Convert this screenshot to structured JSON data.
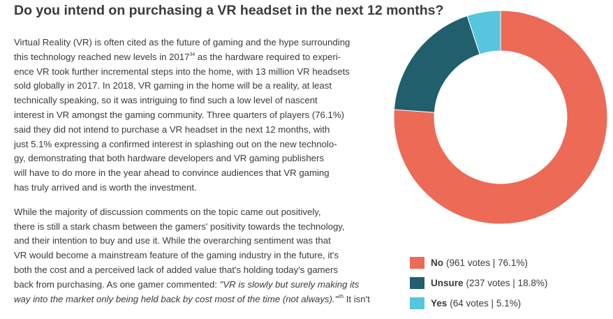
{
  "title": "Do you intend on purchasing a VR headset in the next 12 months?",
  "paragraph1": {
    "l1": "Virtual Reality (VR) is often cited as the future of gaming and the hype surrounding",
    "l2a": "this technology reached new levels in 2017",
    "l2sup": "34",
    "l2b": " as the hardware required to experi-",
    "l3": "ence VR took further incremental steps into the home, with 13 million VR headsets",
    "l4": "sold globally in 2017. In 2018, VR gaming in the home will be a reality, at least",
    "l5": "technically speaking, so it was intriguing to find such a low level of nascent",
    "l6": "interest in VR amongst the gaming community. Three quarters of players (76.1%)",
    "l7": "said they did not intend to purchase a VR headset in the next 12 months, with",
    "l8": "just 5.1% expressing a confirmed interest in splashing out on the new technolo-",
    "l9": "gy, demonstrating that both hardware developers and VR gaming publishers",
    "l10": "will have to do more in the year ahead to convince audiences that VR gaming",
    "l11": "has truly arrived and is worth the investment."
  },
  "paragraph2": {
    "l1": "While the majority of discussion comments on the topic came out positively,",
    "l2": "there is still a stark chasm between the gamers' positivity towards the technology,",
    "l3": "and their intention to buy and use it. While the overarching sentiment was that",
    "l4": "VR would become a mainstream feature of the gaming industry in the future, it's",
    "l5": "both the cost and a perceived lack of added value that's holding today's gamers",
    "l6a": "back from purchasing. As one gamer commented: ",
    "l6b": "\"VR is slowly but surely making its",
    "l7a": "way into the market only being held back by cost most of the time (not always).\"",
    "l7sup": "35",
    "l7b": " It isn't"
  },
  "colors": {
    "no": "#ec6a56",
    "unsure": "#225f6d",
    "yes": "#56c5dd"
  },
  "chart_data": {
    "type": "pie",
    "title": "Do you intend on purchasing a VR headset in the next 12 months?",
    "categories": [
      "No",
      "Unsure",
      "Yes"
    ],
    "values": [
      961,
      237,
      64
    ],
    "percentages": [
      76.1,
      18.8,
      5.1
    ],
    "donut": true,
    "legend_position": "bottom-right"
  },
  "legend": [
    {
      "label": "No",
      "detail": "(961 votes | 76.1%)"
    },
    {
      "label": "Unsure",
      "detail": "(237 votes | 18.8%)"
    },
    {
      "label": "Yes",
      "detail": "(64 votes | 5.1%)"
    }
  ]
}
